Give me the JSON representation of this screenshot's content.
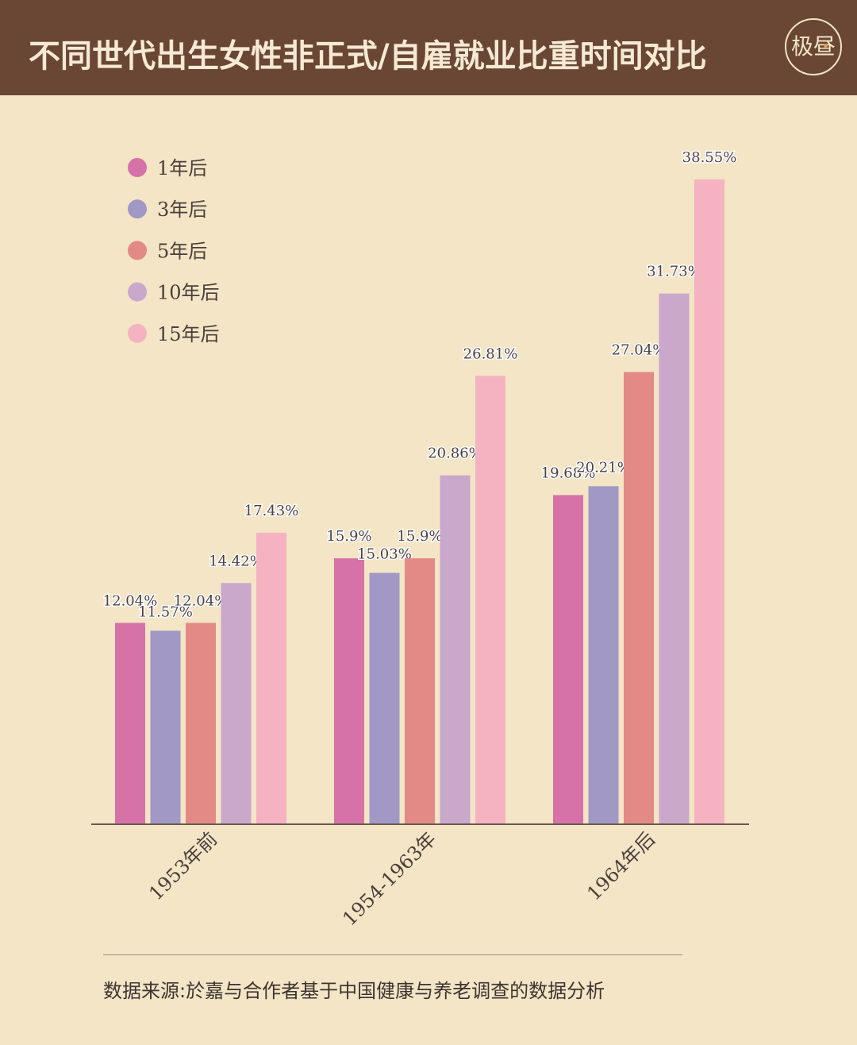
{
  "header": {
    "title": "不同世代出生女性非正式/自雇就业比重时间对比",
    "logo_text": "极昼"
  },
  "chart_data": {
    "type": "bar",
    "title": "不同世代出生女性非正式/自雇就业比重时间对比",
    "categories": [
      "1953年前",
      "1954-1963年",
      "1964年后"
    ],
    "series": [
      {
        "name": "1年后",
        "color": "#d672a8",
        "values": [
          12.04,
          15.9,
          19.68
        ],
        "labels": [
          "12.04%",
          "15.9%",
          "19.68%"
        ]
      },
      {
        "name": "3年后",
        "color": "#a198c5",
        "values": [
          11.57,
          15.03,
          20.21
        ],
        "labels": [
          "11.57%",
          "15.03%",
          "20.21%"
        ]
      },
      {
        "name": "5年后",
        "color": "#e38a86",
        "values": [
          12.04,
          15.9,
          27.04
        ],
        "labels": [
          "12.04%",
          "15.9%",
          "27.04%"
        ]
      },
      {
        "name": "10年后",
        "color": "#c9a8cc",
        "values": [
          14.42,
          20.86,
          31.73
        ],
        "labels": [
          "14.42%",
          "20.86%",
          "31.73%"
        ]
      },
      {
        "name": "15年后",
        "color": "#f5b3c1",
        "values": [
          17.43,
          26.81,
          38.55
        ],
        "labels": [
          "17.43%",
          "26.81%",
          "38.55%"
        ]
      }
    ],
    "ylim": [
      0,
      38.55
    ],
    "grid": false,
    "legend": "top-left",
    "xlabel": "",
    "ylabel": ""
  },
  "footer": {
    "source": "数据来源:於嘉与合作者基于中国健康与养老调查的数据分析"
  }
}
